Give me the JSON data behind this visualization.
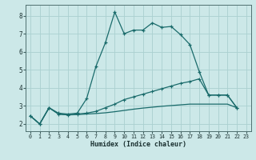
{
  "xlabel": "Humidex (Indice chaleur)",
  "bg_color": "#cce8e8",
  "grid_color": "#aad0d0",
  "line_color": "#1a6b6b",
  "xlim": [
    -0.5,
    23.5
  ],
  "ylim": [
    1.6,
    8.6
  ],
  "xticks": [
    0,
    1,
    2,
    3,
    4,
    5,
    6,
    7,
    8,
    9,
    10,
    11,
    12,
    13,
    14,
    15,
    16,
    17,
    18,
    19,
    20,
    21,
    22,
    23
  ],
  "yticks": [
    2,
    3,
    4,
    5,
    6,
    7,
    8
  ],
  "s1_x": [
    0,
    1,
    2,
    3,
    4,
    5,
    6,
    7,
    8,
    9,
    10,
    11,
    12,
    13,
    14,
    15,
    16,
    17,
    18,
    19,
    20,
    21,
    22
  ],
  "s1_y": [
    2.45,
    2.0,
    2.9,
    2.6,
    2.55,
    2.6,
    3.4,
    5.2,
    6.5,
    8.2,
    7.0,
    7.2,
    7.2,
    7.6,
    7.35,
    7.4,
    6.95,
    6.4,
    4.9,
    3.6,
    3.6,
    3.6,
    2.9
  ],
  "s2_x": [
    0,
    1,
    2,
    3,
    4,
    5,
    6,
    7,
    8,
    9,
    10,
    11,
    12,
    13,
    14,
    15,
    16,
    17,
    18,
    19,
    20,
    21,
    22
  ],
  "s2_y": [
    2.45,
    2.0,
    2.9,
    2.55,
    2.5,
    2.55,
    2.6,
    2.7,
    2.9,
    3.1,
    3.35,
    3.5,
    3.65,
    3.8,
    3.95,
    4.1,
    4.25,
    4.35,
    4.5,
    3.6,
    3.6,
    3.6,
    2.9
  ],
  "s3_x": [
    0,
    1,
    2,
    3,
    4,
    5,
    6,
    7,
    8,
    9,
    10,
    11,
    12,
    13,
    14,
    15,
    16,
    17,
    18,
    19,
    20,
    21,
    22
  ],
  "s3_y": [
    2.45,
    2.0,
    2.9,
    2.55,
    2.5,
    2.52,
    2.55,
    2.58,
    2.62,
    2.68,
    2.75,
    2.82,
    2.88,
    2.93,
    2.98,
    3.02,
    3.06,
    3.1,
    3.1,
    3.1,
    3.1,
    3.1,
    2.9
  ]
}
